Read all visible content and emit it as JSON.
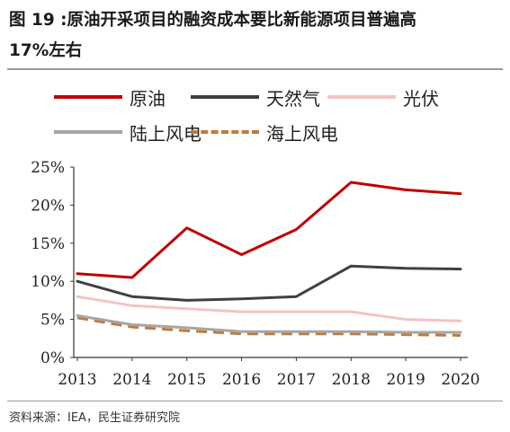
{
  "title": {
    "line1": "图 19 :原油开采项目的融资成本要比新能源项目普遍高",
    "line2": "17%左右"
  },
  "source": "资料来源：IEA，民生证券研究院",
  "chart_data": {
    "type": "line",
    "title": "",
    "xlabel": "",
    "ylabel": "",
    "x": [
      "2013",
      "2014",
      "2015",
      "2016",
      "2017",
      "2018",
      "2019",
      "2020"
    ],
    "yticks": [
      "0%",
      "5%",
      "10%",
      "15%",
      "20%",
      "25%"
    ],
    "ylim": [
      0,
      25
    ],
    "y_unit": "%",
    "grid": false,
    "legend_position": "top",
    "series": [
      {
        "name": "原油",
        "color": "#c00000",
        "dash": false,
        "values": [
          11.0,
          10.5,
          17.0,
          13.5,
          16.8,
          23.0,
          22.0,
          21.5
        ]
      },
      {
        "name": "天然气",
        "color": "#404040",
        "dash": false,
        "values": [
          10.0,
          8.0,
          7.5,
          7.7,
          8.0,
          12.0,
          11.7,
          11.6
        ]
      },
      {
        "name": "光伏",
        "color": "#f2c4c4",
        "dash": false,
        "values": [
          8.0,
          6.8,
          6.4,
          6.0,
          6.0,
          6.0,
          5.0,
          4.8
        ]
      },
      {
        "name": "陆上风电",
        "color": "#a6a6a6",
        "dash": false,
        "values": [
          5.5,
          4.3,
          3.9,
          3.4,
          3.4,
          3.4,
          3.3,
          3.3
        ]
      },
      {
        "name": "海上风电",
        "color": "#c07a3a",
        "dash": true,
        "values": [
          5.2,
          4.0,
          3.5,
          3.1,
          3.1,
          3.1,
          3.0,
          2.9
        ]
      }
    ]
  }
}
